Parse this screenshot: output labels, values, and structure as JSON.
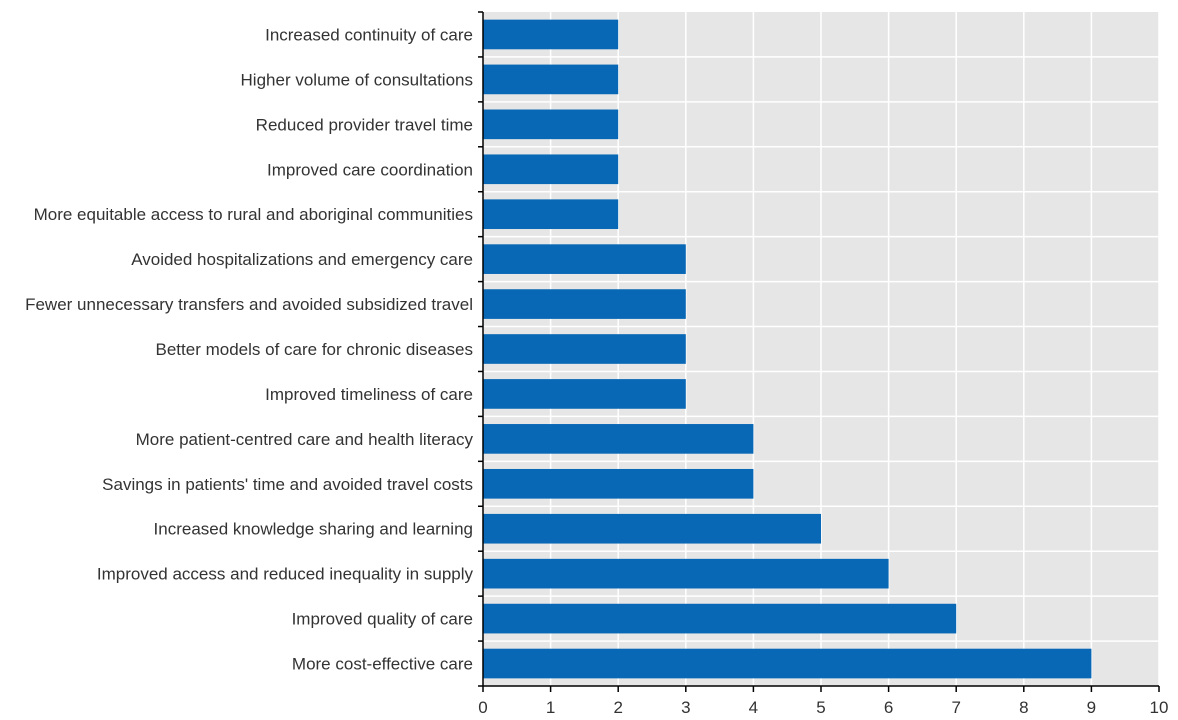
{
  "chart_data": {
    "type": "bar",
    "orientation": "horizontal",
    "title": "",
    "xlabel": "",
    "ylabel": "",
    "xlim": [
      0,
      10
    ],
    "xticks": [
      0,
      1,
      2,
      3,
      4,
      5,
      6,
      7,
      8,
      9,
      10
    ],
    "grid": true,
    "categories": [
      "Increased continuity of care",
      "Higher volume of consultations",
      "Reduced provider travel time",
      "Improved care coordination",
      "More equitable access to rural and aboriginal communities",
      "Avoided hospitalizations and emergency care",
      "Fewer unnecessary transfers and avoided subsidized travel",
      "Better models of care for chronic diseases",
      "Improved timeliness of care",
      "More patient-centred care and health literacy",
      "Savings in patients' time and avoided travel costs",
      "Increased knowledge sharing and learning",
      "Improved access and reduced inequality in supply",
      "Improved quality of care",
      "More cost-effective care"
    ],
    "values": [
      2,
      2,
      2,
      2,
      2,
      3,
      3,
      3,
      3,
      4,
      4,
      5,
      6,
      7,
      9
    ],
    "colors": {
      "bar": "#0868b5",
      "plot_background": "#e6e6e6",
      "gridline": "#ffffff",
      "axis": "#000000"
    }
  }
}
